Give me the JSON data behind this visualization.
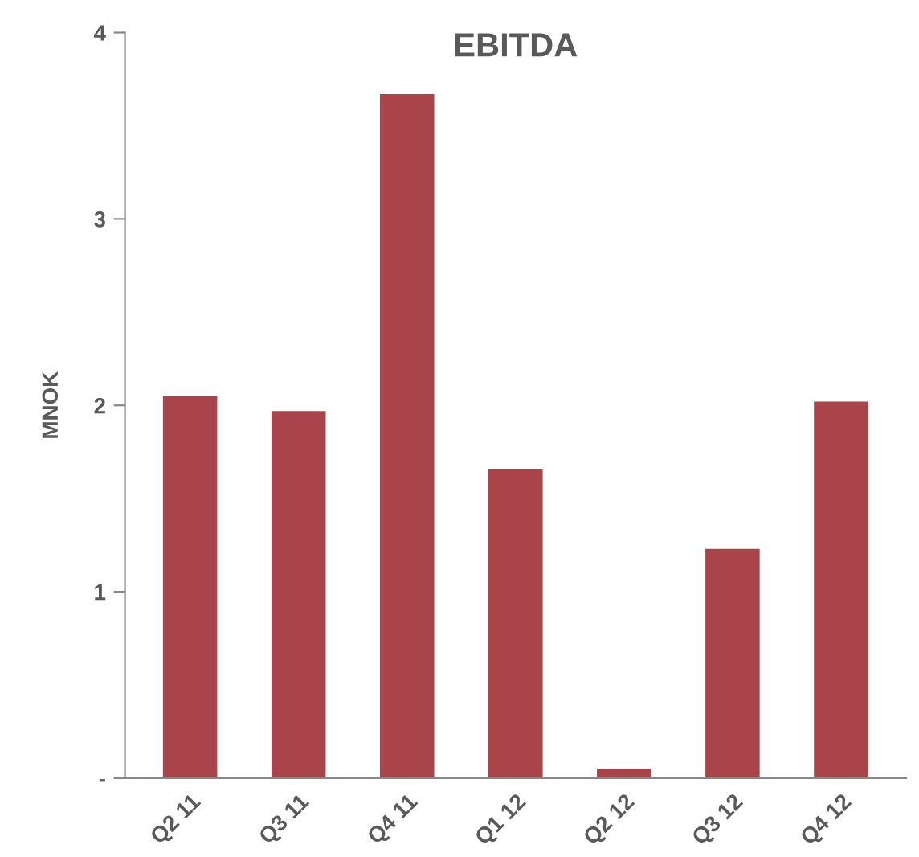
{
  "chart_data": {
    "type": "bar",
    "title": "EBITDA",
    "ylabel": "MNOK",
    "categories": [
      "Q2 11",
      "Q3 11",
      "Q4 11",
      "Q1 12",
      "Q2 12",
      "Q3 12",
      "Q4 12"
    ],
    "values": [
      2.05,
      1.97,
      3.67,
      1.66,
      0.05,
      1.23,
      2.02
    ],
    "color": "#a8444a",
    "ylim": [
      0,
      4
    ],
    "yticks": [
      {
        "value": 0,
        "label": "-"
      },
      1,
      2,
      3,
      4
    ],
    "grid": false
  }
}
